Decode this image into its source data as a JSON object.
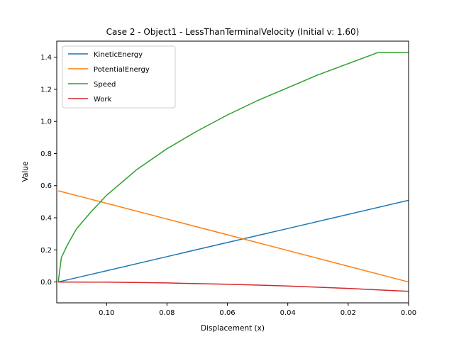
{
  "chart_data": {
    "type": "line",
    "title": "Case 2 - Object1 - LessThanTerminalVelocity (Initial v: 1.60)",
    "xlabel": "Displacement (x)",
    "ylabel": "Value",
    "xlim": [
      0.1165,
      0.0
    ],
    "ylim": [
      -0.13,
      1.5
    ],
    "x_inverted": true,
    "grid": false,
    "legend_position": "top-left",
    "x_ticks": [
      0.1,
      0.08,
      0.06,
      0.04,
      0.02,
      0.0
    ],
    "x_tick_labels": [
      "0.10",
      "0.08",
      "0.06",
      "0.04",
      "0.02",
      "0.00"
    ],
    "y_ticks": [
      0.0,
      0.2,
      0.4,
      0.6,
      0.8,
      1.0,
      1.2,
      1.4
    ],
    "y_tick_labels": [
      "0.0",
      "0.2",
      "0.4",
      "0.6",
      "0.8",
      "1.0",
      "1.2",
      "1.4"
    ],
    "series": [
      {
        "name": "KineticEnergy",
        "color": "#1f77b4",
        "x": [
          0.116,
          0.1,
          0.08,
          0.06,
          0.04,
          0.02,
          0.0
        ],
        "y": [
          0.0,
          0.07,
          0.158,
          0.246,
          0.333,
          0.421,
          0.509
        ]
      },
      {
        "name": "PotentialEnergy",
        "color": "#ff7f0e",
        "x": [
          0.116,
          0.1,
          0.08,
          0.06,
          0.04,
          0.02,
          0.0
        ],
        "y": [
          0.568,
          0.49,
          0.392,
          0.294,
          0.196,
          0.098,
          0.0
        ]
      },
      {
        "name": "Speed",
        "color": "#2ca02c",
        "x": [
          0.116,
          0.115,
          0.113,
          0.11,
          0.105,
          0.1,
          0.09,
          0.08,
          0.07,
          0.06,
          0.05,
          0.04,
          0.03,
          0.02,
          0.01,
          0.0
        ],
        "y": [
          0.0,
          0.15,
          0.23,
          0.33,
          0.44,
          0.54,
          0.7,
          0.83,
          0.94,
          1.04,
          1.13,
          1.21,
          1.29,
          1.36,
          1.43,
          1.43
        ]
      },
      {
        "name": "Work",
        "color": "#d62728",
        "x": [
          0.116,
          0.1,
          0.08,
          0.06,
          0.04,
          0.02,
          0.0
        ],
        "y": [
          0.0,
          -0.001,
          -0.006,
          -0.014,
          -0.025,
          -0.04,
          -0.058
        ]
      }
    ]
  }
}
